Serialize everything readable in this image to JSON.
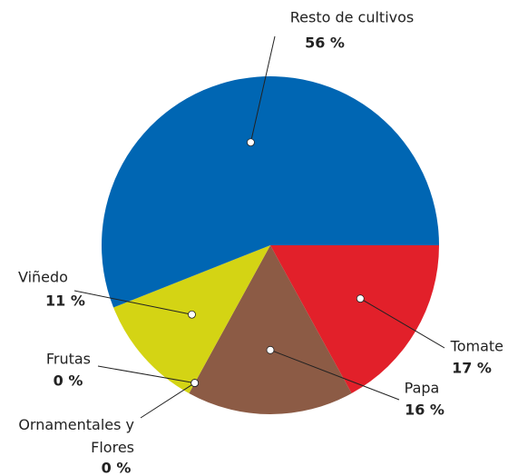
{
  "chart_data": {
    "type": "pie",
    "categories": [
      "Tomate",
      "Papa",
      "Ornamentales y Flores",
      "Frutas",
      "Viñedo",
      "Resto de cultivos"
    ],
    "values": [
      17,
      16,
      0,
      0,
      11,
      56
    ],
    "value_labels": [
      "17 %",
      "16 %",
      "0 %",
      "0 %",
      "11 %",
      "56 %"
    ],
    "colors": [
      "#e2202a",
      "#8c5b45",
      "#f08a24",
      "#3a4257",
      "#d4d414",
      "#0066b3"
    ]
  }
}
